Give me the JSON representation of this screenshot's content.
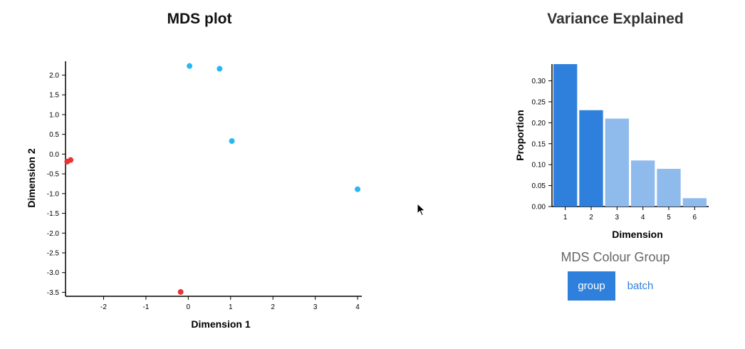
{
  "chart_data": [
    {
      "type": "scatter",
      "title": "MDS plot",
      "xlabel": "Dimension 1",
      "ylabel": "Dimension 2",
      "xlim": [
        -2.9,
        4.1
      ],
      "ylim": [
        -3.6,
        2.35
      ],
      "xticks": [
        -2,
        -1,
        0,
        1,
        2,
        3,
        4
      ],
      "yticks": [
        2.0,
        1.5,
        1.0,
        0.5,
        0.0,
        -0.5,
        -1.0,
        -1.5,
        -2.0,
        -2.5,
        -3.0,
        -3.5
      ],
      "grid": false,
      "points": [
        {
          "x": 0.03,
          "y": 2.23,
          "color": "#25b9f0"
        },
        {
          "x": 0.74,
          "y": 2.16,
          "color": "#25b9f0"
        },
        {
          "x": 1.03,
          "y": 0.33,
          "color": "#25b9f0"
        },
        {
          "x": 4.0,
          "y": -0.89,
          "color": "#25b9f0"
        },
        {
          "x": -2.86,
          "y": -0.19,
          "color": "#e83434"
        },
        {
          "x": -2.78,
          "y": -0.15,
          "color": "#e83434"
        },
        {
          "x": -0.18,
          "y": -3.49,
          "color": "#e83434"
        }
      ]
    },
    {
      "type": "bar",
      "title": "Variance Explained",
      "xlabel": "Dimension",
      "ylabel": "Proportion",
      "categories": [
        "1",
        "2",
        "3",
        "4",
        "5",
        "6"
      ],
      "values": [
        0.34,
        0.23,
        0.21,
        0.11,
        0.09,
        0.02
      ],
      "ylim": [
        0,
        0.34
      ],
      "yticks": [
        0.0,
        0.05,
        0.1,
        0.15,
        0.2,
        0.25,
        0.3
      ],
      "bar_colors": [
        "#2f80dc",
        "#2f80dc",
        "#8fbbec",
        "#8fbbec",
        "#8fbbec",
        "#8fbbec"
      ],
      "grid": false
    }
  ],
  "controls": {
    "colour_group_label": "MDS Colour Group",
    "buttons": [
      {
        "label": "group",
        "active": true
      },
      {
        "label": "batch",
        "active": false
      }
    ]
  },
  "colors": {
    "accent": "#2f80dc",
    "accent_light": "#8fbbec",
    "series_blue": "#25b9f0",
    "series_red": "#e83434"
  }
}
